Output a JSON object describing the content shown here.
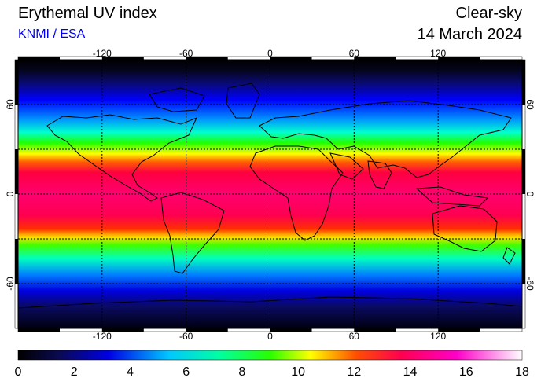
{
  "header": {
    "title": "Erythemal UV index",
    "source": "KNMI / ESA",
    "mode": "Clear-sky",
    "date": "14 March 2024"
  },
  "map": {
    "lon_ticks": [
      "-120",
      "-60",
      "0",
      "60",
      "120"
    ],
    "lat_ticks_left": [
      "60",
      "0",
      "-60"
    ],
    "lat_ticks_right": [
      "60",
      "0",
      "-60"
    ]
  },
  "colorbar": {
    "min": 0,
    "max": 18,
    "labels": [
      "0",
      "2",
      "4",
      "6",
      "8",
      "10",
      "12",
      "14",
      "16",
      "18"
    ],
    "stops": [
      "#000000",
      "#0a0a50",
      "#0000e6",
      "#00c8ff",
      "#00ffa0",
      "#28ff00",
      "#ffff00",
      "#ff5000",
      "#ff0050",
      "#ff00c8",
      "#ffffff"
    ]
  }
}
